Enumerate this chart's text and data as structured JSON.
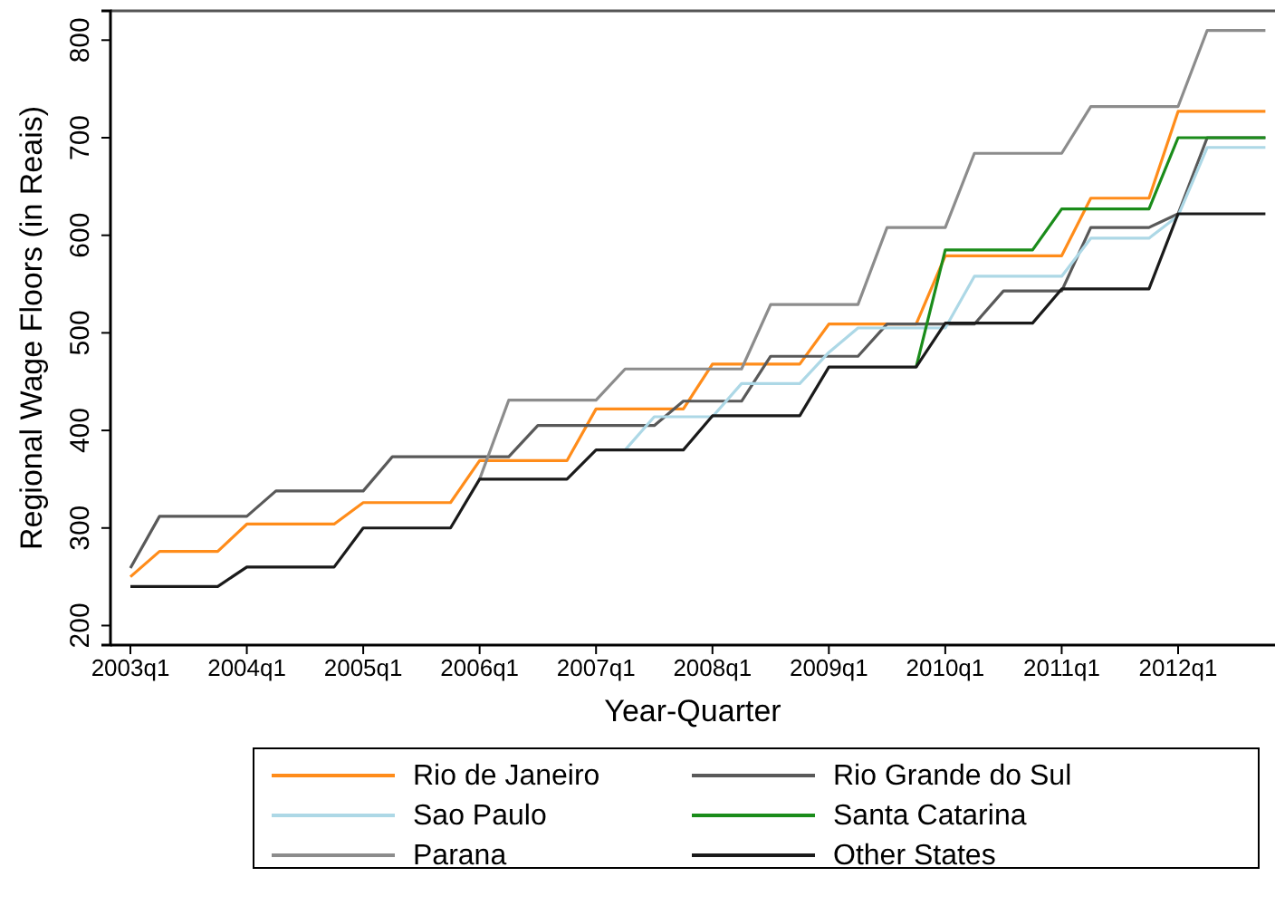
{
  "chart_data": {
    "type": "line",
    "xlabel": "Year-Quarter",
    "ylabel": "Regional Wage Floors (in Reais)",
    "categories": [
      "2003q1",
      null,
      null,
      null,
      "2004q1",
      null,
      null,
      null,
      "2005q1",
      null,
      null,
      null,
      "2006q1",
      null,
      null,
      null,
      "2007q1",
      null,
      null,
      null,
      "2008q1",
      null,
      null,
      null,
      "2009q1",
      null,
      null,
      null,
      "2010q1",
      null,
      null,
      null,
      "2011q1",
      null,
      null,
      null,
      "2012q1",
      null,
      null,
      null
    ],
    "ylim": [
      180,
      830
    ],
    "yticks": [
      200,
      300,
      400,
      500,
      600,
      700,
      800
    ],
    "grid": false,
    "legend": "bottom",
    "marker": "none",
    "line_style": "solid",
    "series": [
      {
        "name": "Rio de Janeiro",
        "color": "#ff8c1a",
        "values": [
          250,
          276,
          276,
          276,
          304,
          304,
          304,
          304,
          326,
          326,
          326,
          326,
          369,
          369,
          369,
          369,
          422,
          422,
          422,
          422,
          468,
          468,
          468,
          468,
          509,
          509,
          509,
          509,
          579,
          579,
          579,
          579,
          579,
          638,
          638,
          638,
          727,
          727,
          727,
          727
        ]
      },
      {
        "name": "Rio Grande do Sul",
        "color": "#595959",
        "values": [
          259,
          312,
          312,
          312,
          312,
          338,
          338,
          338,
          338,
          373,
          373,
          373,
          373,
          373,
          405,
          405,
          405,
          405,
          405,
          430,
          430,
          430,
          476,
          476,
          476,
          476,
          509,
          509,
          509,
          509,
          543,
          543,
          543,
          608,
          608,
          608,
          622,
          700,
          700,
          700
        ]
      },
      {
        "name": "Sao Paulo",
        "color": "#add8e6",
        "values": [
          null,
          null,
          null,
          null,
          null,
          null,
          null,
          null,
          null,
          null,
          null,
          null,
          null,
          null,
          null,
          null,
          null,
          380,
          414,
          414,
          414,
          448,
          448,
          448,
          480,
          505,
          505,
          505,
          505,
          558,
          558,
          558,
          558,
          597,
          597,
          597,
          620,
          690,
          690,
          690
        ]
      },
      {
        "name": "Santa Catarina",
        "color": "#1a8c1a",
        "values": [
          null,
          null,
          null,
          null,
          null,
          null,
          null,
          null,
          null,
          null,
          null,
          null,
          null,
          null,
          null,
          null,
          null,
          null,
          null,
          null,
          null,
          null,
          null,
          null,
          null,
          null,
          null,
          465,
          585,
          585,
          585,
          585,
          627,
          627,
          627,
          627,
          700,
          700,
          700,
          700
        ]
      },
      {
        "name": "Parana",
        "color": "#8c8c8c",
        "values": [
          null,
          null,
          null,
          null,
          null,
          null,
          null,
          null,
          null,
          null,
          null,
          null,
          350,
          431,
          431,
          431,
          431,
          463,
          463,
          463,
          463,
          463,
          529,
          529,
          529,
          529,
          608,
          608,
          608,
          684,
          684,
          684,
          684,
          732,
          732,
          732,
          732,
          810,
          810,
          810
        ]
      },
      {
        "name": "Other States",
        "color": "#1a1a1a",
        "values": [
          240,
          240,
          240,
          240,
          260,
          260,
          260,
          260,
          300,
          300,
          300,
          300,
          350,
          350,
          350,
          350,
          380,
          380,
          380,
          380,
          415,
          415,
          415,
          415,
          465,
          465,
          465,
          465,
          510,
          510,
          510,
          510,
          545,
          545,
          545,
          545,
          622,
          622,
          622,
          622
        ]
      }
    ]
  }
}
